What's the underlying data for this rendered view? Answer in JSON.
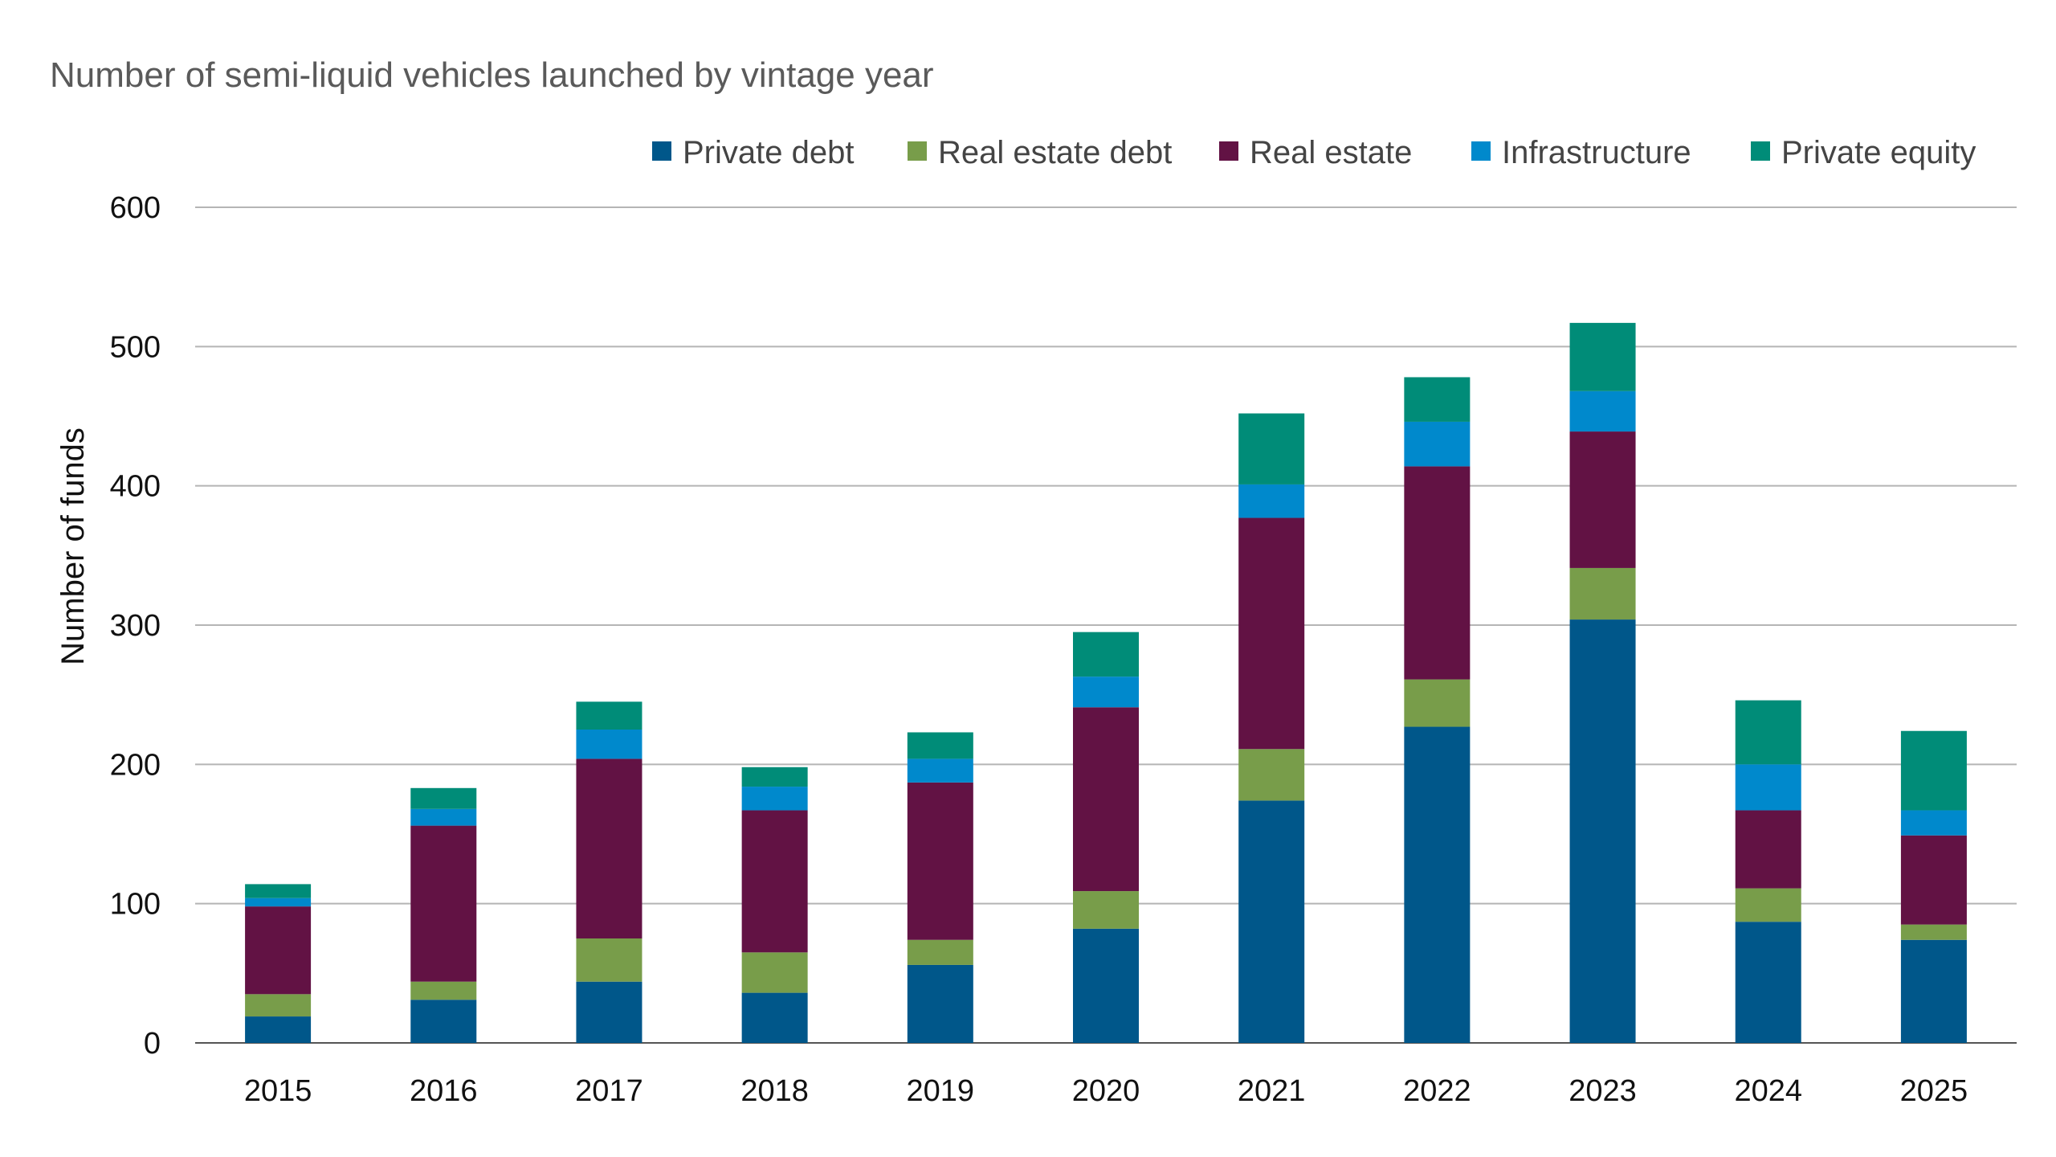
{
  "chart_data": {
    "type": "bar",
    "stacked": true,
    "title": "Number of semi-liquid vehicles launched by vintage year",
    "xlabel": "",
    "ylabel": "Number of funds",
    "ylim": [
      0,
      600
    ],
    "yticks": [
      0,
      100,
      200,
      300,
      400,
      500,
      600
    ],
    "grid": true,
    "legend_position": "top-right",
    "categories": [
      "2015",
      "2016",
      "2017",
      "2018",
      "2019",
      "2020",
      "2021",
      "2022",
      "2023",
      "2024",
      "2025"
    ],
    "series": [
      {
        "name": "Private debt",
        "color": "#00578a",
        "values": [
          19,
          31,
          44,
          36,
          56,
          82,
          174,
          227,
          304,
          87,
          74
        ]
      },
      {
        "name": "Real estate debt",
        "color": "#789d4a",
        "values": [
          16,
          13,
          31,
          29,
          18,
          27,
          37,
          34,
          37,
          24,
          11
        ]
      },
      {
        "name": "Real estate",
        "color": "#621244",
        "values": [
          63,
          112,
          129,
          102,
          113,
          132,
          166,
          153,
          98,
          56,
          64
        ]
      },
      {
        "name": "Infrastructure",
        "color": "#0089cc",
        "values": [
          6,
          12,
          21,
          17,
          17,
          22,
          24,
          32,
          29,
          33,
          18
        ]
      },
      {
        "name": "Private equity",
        "color": "#008c78",
        "values": [
          10,
          15,
          20,
          14,
          19,
          32,
          51,
          32,
          49,
          46,
          57
        ]
      }
    ]
  }
}
